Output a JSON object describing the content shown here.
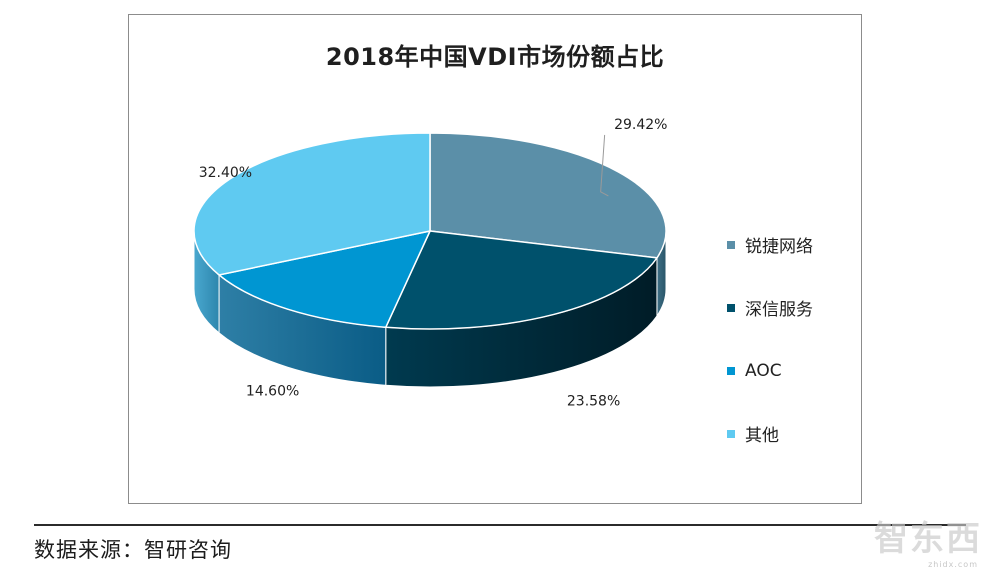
{
  "chart_data": {
    "type": "pie",
    "title": "2018年中国VDI市场份额占比",
    "categories": [
      "锐捷网络",
      "深信服务",
      "AOC",
      "其他"
    ],
    "values": [
      29.42,
      23.58,
      14.6,
      32.4
    ],
    "labels": [
      "29.42%",
      "23.58%",
      "14.60%",
      "32.40%"
    ],
    "colors": [
      "#5b8fa8",
      "#00516c",
      "#0096d2",
      "#5fcaf1"
    ],
    "legend_position": "right",
    "style": "3d"
  },
  "legend": {
    "items": [
      {
        "label": "锐捷网络",
        "color": "#5b8fa8"
      },
      {
        "label": "深信服务",
        "color": "#00516c"
      },
      {
        "label": "AOC",
        "color": "#0096d2"
      },
      {
        "label": "其他",
        "color": "#5fcaf1"
      }
    ]
  },
  "source": {
    "text": "数据来源：智研咨询"
  },
  "watermark": {
    "text": "智东西",
    "sub": "zhidx.com"
  }
}
